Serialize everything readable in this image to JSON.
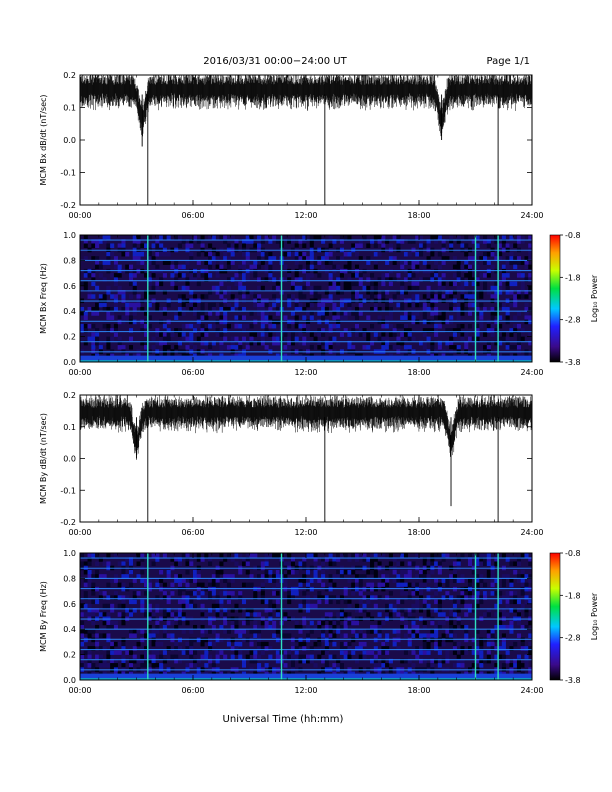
{
  "header": {
    "title": "2016/03/31   00:00−24:00 UT",
    "page": "Page 1/1"
  },
  "footer": {
    "xlabel": "Universal Time (hh:mm)"
  },
  "colors": {
    "trace": "#000000",
    "background": "#ffffff",
    "panel_border": "#000000"
  },
  "chart_data": [
    {
      "type": "line",
      "panel": "bx-derivative",
      "ylabel": "MCM Bx dB/dt (nT/sec)",
      "xlim": [
        0,
        24
      ],
      "ylim": [
        -0.2,
        0.2
      ],
      "x_ticks": [
        "00:00",
        "06:00",
        "12:00",
        "18:00",
        "24:00"
      ],
      "y_ticks": [
        "-0.2",
        "-0.1",
        "0.0",
        "0.1",
        "0.2"
      ],
      "baseline": 0.16,
      "spikes": [
        {
          "x": 3.6,
          "y": -0.2
        },
        {
          "x": 13.0,
          "y": -0.2
        },
        {
          "x": 22.2,
          "y": -0.2
        },
        {
          "x": 3.3,
          "y": -0.02
        },
        {
          "x": 19.2,
          "y": 0.0
        }
      ]
    },
    {
      "type": "heatmap",
      "panel": "bx-spectrogram",
      "ylabel": "MCM Bx Freq (Hz)",
      "xlim": [
        0,
        24
      ],
      "ylim": [
        0,
        1.0
      ],
      "x_ticks": [
        "00:00",
        "06:00",
        "12:00",
        "18:00",
        "24:00"
      ],
      "y_ticks": [
        "0.0",
        "0.2",
        "0.4",
        "0.6",
        "0.8",
        "1.0"
      ],
      "colorbar": {
        "label": "Log₁₀ Power",
        "ticks": [
          "-0.8",
          "-1.8",
          "-2.8",
          "-3.8"
        ],
        "range": [
          -3.8,
          -0.8
        ]
      },
      "vertical_lines_hours": [
        3.6,
        10.7,
        21.0,
        22.2
      ],
      "harmonic_lines_hz": [
        0.08,
        0.16,
        0.24,
        0.32,
        0.4,
        0.48,
        0.56,
        0.64,
        0.72,
        0.8,
        0.88,
        0.96
      ]
    },
    {
      "type": "line",
      "panel": "by-derivative",
      "ylabel": "MCM By dB/dt (nT/sec)",
      "xlim": [
        0,
        24
      ],
      "ylim": [
        -0.2,
        0.2
      ],
      "x_ticks": [
        "00:00",
        "06:00",
        "12:00",
        "18:00",
        "24:00"
      ],
      "y_ticks": [
        "-0.2",
        "-0.1",
        "0.0",
        "0.1",
        "0.2"
      ],
      "baseline": 0.15,
      "spikes": [
        {
          "x": 3.6,
          "y": -0.2
        },
        {
          "x": 13.0,
          "y": -0.2
        },
        {
          "x": 22.2,
          "y": -0.2
        },
        {
          "x": 19.7,
          "y": -0.15
        },
        {
          "x": 3.0,
          "y": 0.0
        }
      ]
    },
    {
      "type": "heatmap",
      "panel": "by-spectrogram",
      "ylabel": "MCM By Freq (Hz)",
      "xlim": [
        0,
        24
      ],
      "ylim": [
        0,
        1.0
      ],
      "x_ticks": [
        "00:00",
        "06:00",
        "12:00",
        "18:00",
        "24:00"
      ],
      "y_ticks": [
        "0.0",
        "0.2",
        "0.4",
        "0.6",
        "0.8",
        "1.0"
      ],
      "colorbar": {
        "label": "Log₁₀ Power",
        "ticks": [
          "-0.8",
          "-1.8",
          "-2.8",
          "-3.8"
        ],
        "range": [
          -3.8,
          -0.8
        ]
      },
      "vertical_lines_hours": [
        3.6,
        10.7,
        21.0,
        22.2
      ],
      "harmonic_lines_hz": [
        0.08,
        0.16,
        0.24,
        0.32,
        0.4,
        0.48,
        0.56,
        0.64,
        0.72,
        0.8,
        0.88,
        0.96
      ]
    }
  ]
}
